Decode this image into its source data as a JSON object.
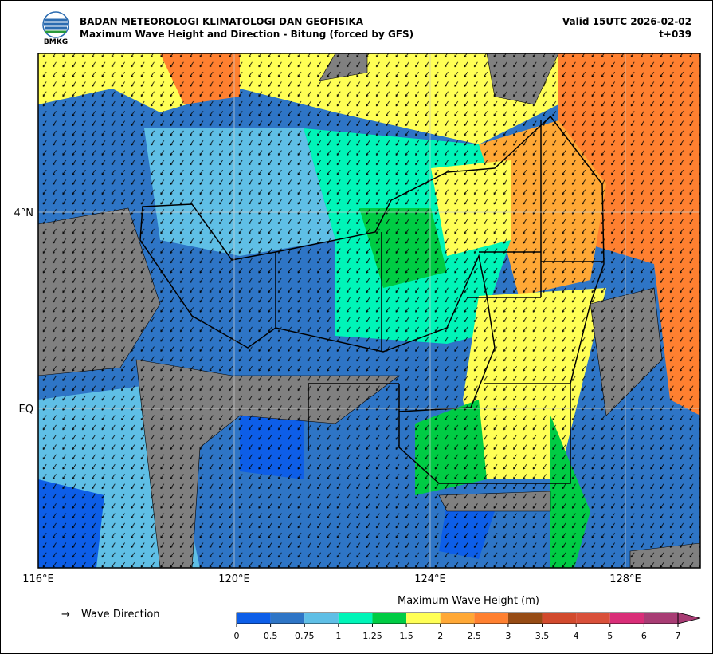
{
  "header": {
    "agency": "BADAN METEOROLOGI KLIMATOLOGI DAN GEOFISIKA",
    "title": "Maximum Wave Height and Direction - Bitung (forced by GFS)",
    "valid": "Valid 15UTC 2026-02-02",
    "lead": "t+039",
    "logo_text": "BMKG"
  },
  "map": {
    "lon_labels": [
      "116°E",
      "120°E",
      "124°E",
      "128°E"
    ],
    "lat_labels": [
      "4°N",
      "EQ"
    ],
    "legend_arrow": "→",
    "legend": "Wave Direction"
  },
  "colorbar": {
    "title": "Maximum Wave Height (m)",
    "ticks": [
      0,
      0.5,
      0.75,
      1,
      1.25,
      1.5,
      2,
      2.5,
      3,
      3.5,
      4,
      5,
      6,
      7
    ],
    "colors": [
      "#0d5ee8",
      "#2e75c6",
      "#5fbfe6",
      "#00f5b8",
      "#00cc44",
      "#ffff55",
      "#ffa836",
      "#ff8030",
      "#964b14",
      "#d24a2d",
      "#d9503a",
      "#d92e78",
      "#a83c74"
    ]
  }
}
